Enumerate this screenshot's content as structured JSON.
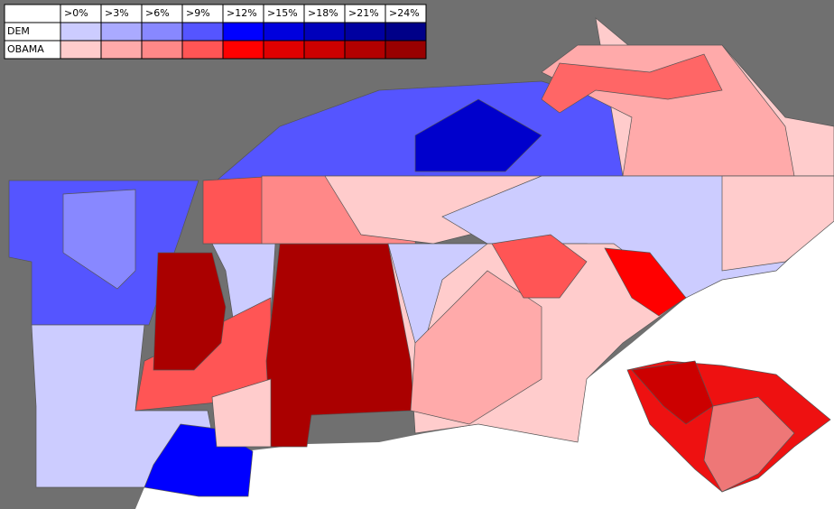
{
  "legend": {
    "columns": [
      ">0%",
      ">3%",
      ">6%",
      ">9%",
      ">12%",
      ">15%",
      ">18%",
      ">21%",
      ">24%"
    ],
    "rows": [
      {
        "label": "DEM",
        "colors": [
          "#ccccff",
          "#aaaaff",
          "#8888ff",
          "#5555ff",
          "#0000ff",
          "#0000dd",
          "#0000bb",
          "#0000a0",
          "#000088"
        ]
      },
      {
        "label": "OBAMA",
        "colors": [
          "#ffcccc",
          "#ffaaaa",
          "#ff8888",
          "#ff5555",
          "#ff0000",
          "#e00000",
          "#cc0000",
          "#b20000",
          "#990000"
        ]
      }
    ]
  }
}
